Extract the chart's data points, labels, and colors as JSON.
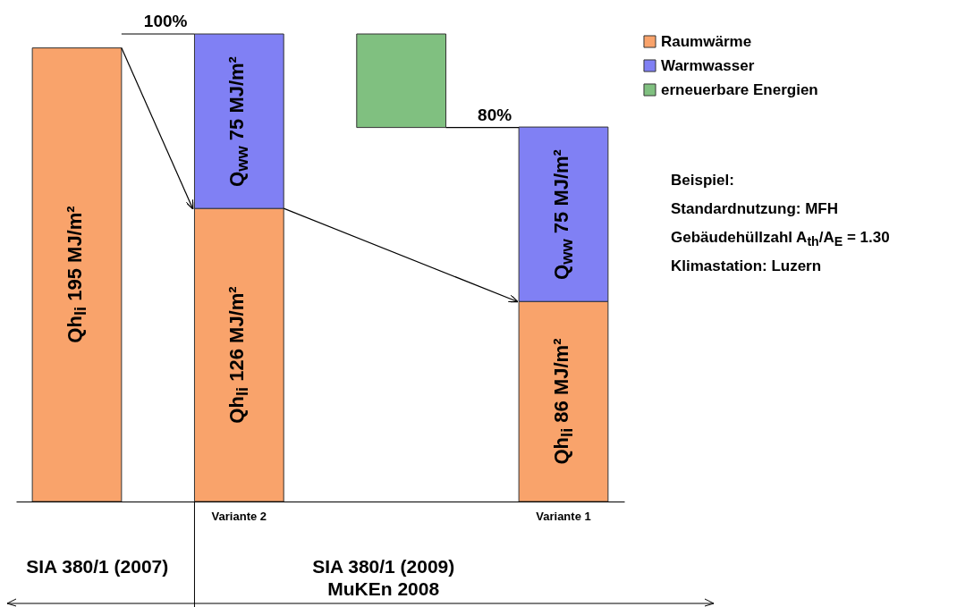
{
  "chart_data": {
    "type": "bar",
    "stacked": true,
    "categories": [
      null,
      "Variante 2",
      null,
      "Variante 1"
    ],
    "series": [
      {
        "name": "Raumwärme",
        "color": "#f9a36b",
        "values": [
          195,
          126,
          null,
          86
        ],
        "value_labels": [
          "Qh$_{li}$ 195 MJ/m²",
          "Qh$_{li}$ 126 MJ/m²",
          null,
          "Qh$_{li}$ 86 MJ/m²"
        ]
      },
      {
        "name": "Warmwasser",
        "color": "#8080f4",
        "values": [
          null,
          75,
          null,
          75
        ],
        "value_labels": [
          null,
          "Q$_{ww}$ 75 MJ/m²",
          null,
          "Q$_{ww}$ 75 MJ/m²"
        ]
      },
      {
        "name": "erneuerbare Energien",
        "color": "#80c080",
        "axis": "y2",
        "values": [
          null,
          null,
          20,
          null
        ],
        "base": [
          null,
          null,
          80,
          null
        ]
      }
    ],
    "y2lim": [
      0,
      100
    ],
    "legend": "top right",
    "ref_lines": [
      {
        "axis": "y2",
        "value": 100,
        "label": "100%"
      },
      {
        "axis": "y2",
        "value": 80,
        "label": "80%"
      }
    ],
    "annotations": [
      "SIA 380/1 (2007)",
      "SIA 380/1 (2009)\nMuKEn 2008",
      "Beispiel:",
      "Standardnutzung: MFH",
      "Gebäudehüllzahl A$_{th}$/A$_{E}$ = 1.30",
      "Klimastation: Luzern"
    ]
  }
}
